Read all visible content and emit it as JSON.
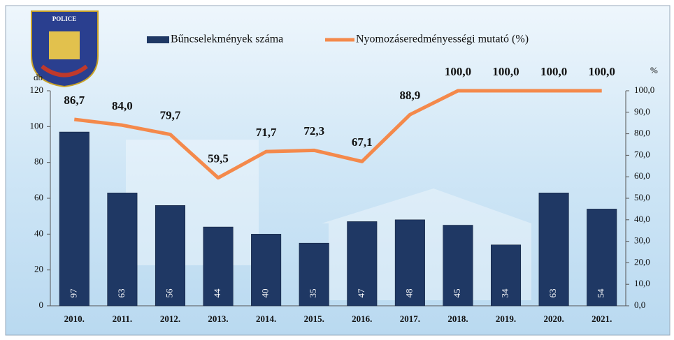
{
  "chart_data": {
    "type": "bar",
    "logo_text": "POLICE",
    "categories": [
      "2010.",
      "2011.",
      "2012.",
      "2013.",
      "2014.",
      "2015.",
      "2016.",
      "2017.",
      "2018.",
      "2019.",
      "2020.",
      "2021."
    ],
    "series": [
      {
        "name": "Bűncselekmények száma",
        "type": "bar",
        "color": "#1f3864",
        "values": [
          97,
          63,
          56,
          44,
          40,
          35,
          47,
          48,
          45,
          34,
          63,
          54
        ]
      },
      {
        "name": "Nyomozáseredményességi mutató (%)",
        "type": "line",
        "axis": "y2",
        "color": "#f4894b",
        "values": [
          86.7,
          84.0,
          79.7,
          59.5,
          71.7,
          72.3,
          67.1,
          88.9,
          100,
          100,
          100,
          100
        ],
        "value_labels": [
          "86,7",
          "84,0",
          "79,7",
          "59,5",
          "71,7",
          "72,3",
          "67,1",
          "88,9",
          "100,0",
          "100,0",
          "100,0",
          "100,0"
        ]
      }
    ],
    "ylabel": "db",
    "y2label": "%",
    "ylim": [
      0,
      120
    ],
    "yticks": [
      0,
      20,
      40,
      60,
      80,
      100,
      120
    ],
    "y2lim": [
      0,
      100
    ],
    "y2ticks": [
      {
        "value": 0,
        "label": "0,0"
      },
      {
        "value": 10,
        "label": "10,0"
      },
      {
        "value": 20,
        "label": "20,0"
      },
      {
        "value": 30,
        "label": "30,0"
      },
      {
        "value": 40,
        "label": "40,0"
      },
      {
        "value": 50,
        "label": "50,0"
      },
      {
        "value": 60,
        "label": "60,0"
      },
      {
        "value": 70,
        "label": "70,0"
      },
      {
        "value": 80,
        "label": "80,0"
      },
      {
        "value": 90,
        "label": "90,0"
      },
      {
        "value": 100,
        "label": "100,0"
      }
    ],
    "legend": "top"
  }
}
